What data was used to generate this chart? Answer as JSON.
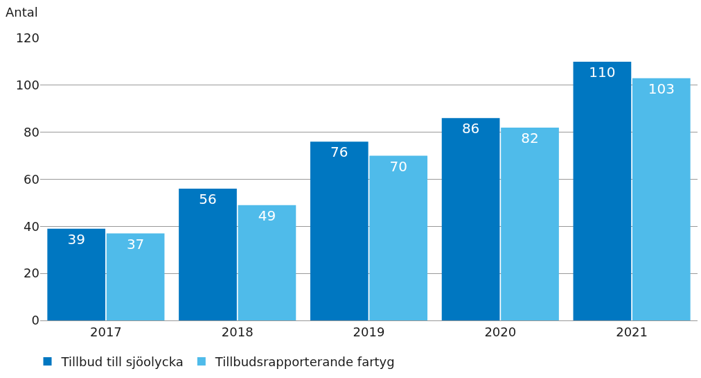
{
  "chart_data": {
    "type": "bar",
    "ylabel": "Antal",
    "categories": [
      "2017",
      "2018",
      "2019",
      "2020",
      "2021"
    ],
    "series": [
      {
        "name": "Tillbud till sjöolycka",
        "color": "#0077c1",
        "values": [
          39,
          56,
          76,
          86,
          110
        ]
      },
      {
        "name": "Tillbudsrapporterande fartyg",
        "color": "#4fbbea",
        "values": [
          37,
          49,
          70,
          82,
          103
        ]
      }
    ],
    "ylim": [
      0,
      120
    ],
    "yticks": [
      0,
      20,
      40,
      60,
      80,
      100,
      120
    ],
    "grid": "y",
    "legend": "bottom left",
    "data_labels": true
  }
}
